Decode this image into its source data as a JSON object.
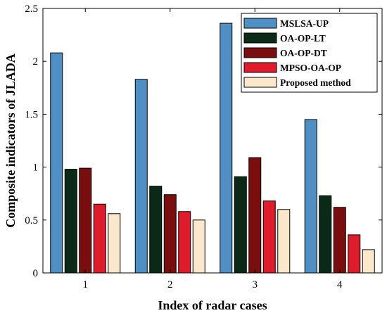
{
  "chart_data": {
    "type": "bar",
    "title": "",
    "xlabel": "Index of radar cases",
    "ylabel": "Composite indicators of JLADA",
    "categories": [
      "1",
      "2",
      "3",
      "4"
    ],
    "ylim": [
      0,
      2.5
    ],
    "yticks": [
      "0",
      "0.5",
      "1",
      "1.5",
      "2",
      "2.5"
    ],
    "grid": false,
    "legend_position": "top-right",
    "series": [
      {
        "name": "MSLSA-UP",
        "color": "#4f8fc3",
        "values": [
          2.08,
          1.83,
          2.36,
          1.45
        ]
      },
      {
        "name": "OA-OP-LT",
        "color": "#0a2a17",
        "values": [
          0.98,
          0.82,
          0.91,
          0.73
        ]
      },
      {
        "name": "OA-OP-DT",
        "color": "#7a0e0e",
        "values": [
          0.99,
          0.74,
          1.09,
          0.62
        ]
      },
      {
        "name": "MPSO-OA-OP",
        "color": "#de1c2c",
        "values": [
          0.65,
          0.58,
          0.68,
          0.36
        ]
      },
      {
        "name": "Proposed method",
        "color": "#fbe8cc",
        "values": [
          0.56,
          0.5,
          0.6,
          0.22
        ]
      }
    ]
  }
}
